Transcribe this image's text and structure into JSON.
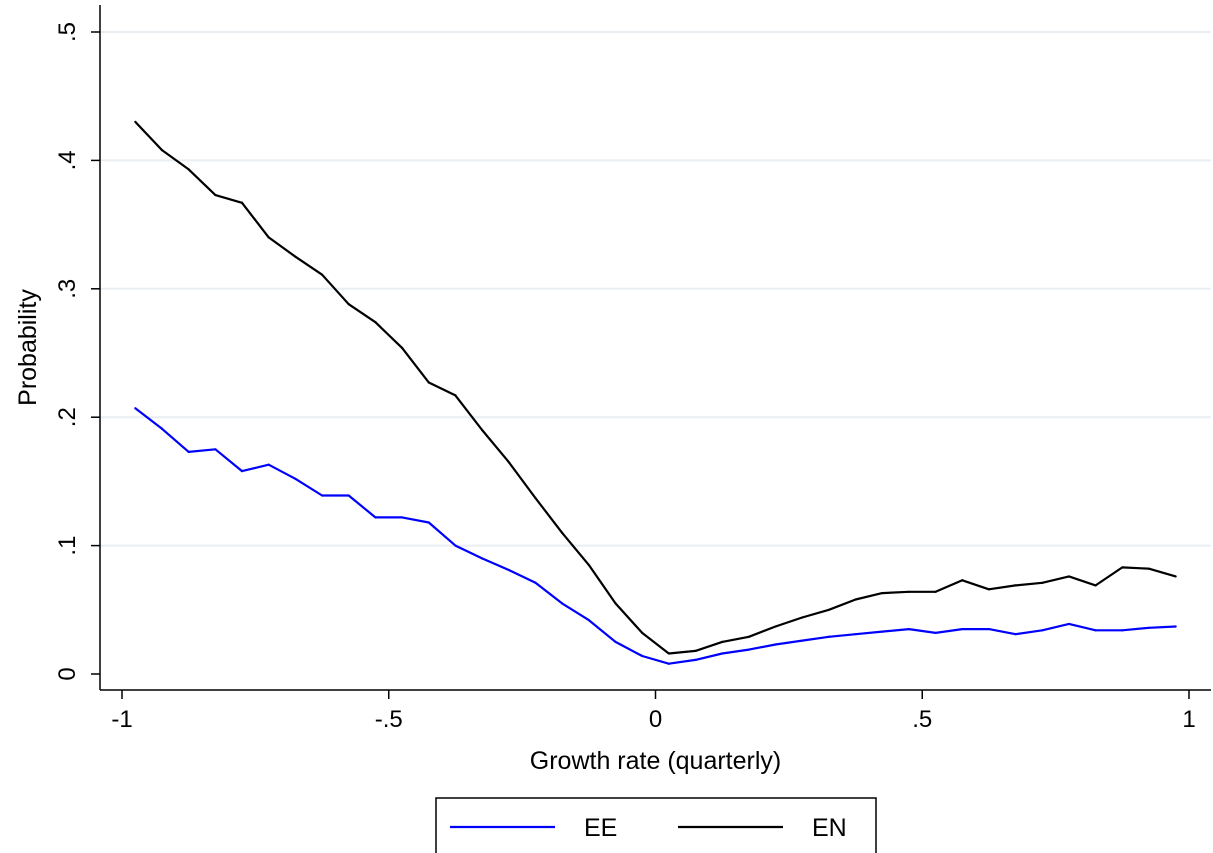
{
  "chart_data": {
    "type": "line",
    "xlabel": "Growth rate (quarterly)",
    "ylabel": "Probability",
    "xlim": [
      -1,
      1
    ],
    "ylim": [
      0,
      0.5
    ],
    "x_ticks": [
      -1,
      -0.5,
      0,
      0.5,
      1
    ],
    "x_tick_labels": [
      "-1",
      "-.5",
      "0",
      ".5",
      "1"
    ],
    "y_ticks": [
      0,
      0.1,
      0.2,
      0.3,
      0.4,
      0.5
    ],
    "y_tick_labels": [
      "0",
      ".1",
      ".2",
      ".3",
      ".4",
      ".5"
    ],
    "grid": "horizontal",
    "legend_position": "bottom",
    "x": [
      -0.975,
      -0.925,
      -0.875,
      -0.825,
      -0.775,
      -0.725,
      -0.675,
      -0.625,
      -0.575,
      -0.525,
      -0.475,
      -0.425,
      -0.375,
      -0.325,
      -0.275,
      -0.225,
      -0.175,
      -0.125,
      -0.075,
      -0.025,
      0.025,
      0.075,
      0.125,
      0.175,
      0.225,
      0.275,
      0.325,
      0.375,
      0.425,
      0.475,
      0.525,
      0.575,
      0.625,
      0.675,
      0.725,
      0.775,
      0.825,
      0.875,
      0.925,
      0.975
    ],
    "series": [
      {
        "name": "EE",
        "color": "#0000ff",
        "values": [
          0.207,
          0.191,
          0.173,
          0.175,
          0.158,
          0.163,
          0.152,
          0.139,
          0.139,
          0.122,
          0.122,
          0.118,
          0.1,
          0.09,
          0.081,
          0.071,
          0.055,
          0.042,
          0.025,
          0.014,
          0.008,
          0.011,
          0.016,
          0.019,
          0.023,
          0.026,
          0.029,
          0.031,
          0.033,
          0.035,
          0.032,
          0.035,
          0.035,
          0.031,
          0.034,
          0.039,
          0.034,
          0.034,
          0.036,
          0.037
        ]
      },
      {
        "name": "EN",
        "color": "#000000",
        "values": [
          0.43,
          0.408,
          0.393,
          0.373,
          0.367,
          0.34,
          0.325,
          0.311,
          0.288,
          0.274,
          0.254,
          0.227,
          0.217,
          0.19,
          0.165,
          0.137,
          0.11,
          0.085,
          0.055,
          0.032,
          0.016,
          0.018,
          0.025,
          0.029,
          0.037,
          0.044,
          0.05,
          0.058,
          0.063,
          0.064,
          0.064,
          0.073,
          0.066,
          0.069,
          0.071,
          0.076,
          0.069,
          0.083,
          0.082,
          0.076
        ]
      }
    ]
  }
}
